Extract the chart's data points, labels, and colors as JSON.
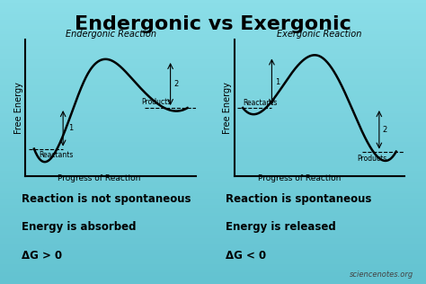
{
  "title": "Endergonic vs Exergonic",
  "title_fontsize": 16,
  "background_color_top": "#7fd8d8",
  "background_color": "#a8e8e8",
  "left_plot_title": "Endergonic Reaction",
  "right_plot_title": "Exergonic Reaction",
  "xlabel": "Progress of Reaction",
  "ylabel": "Free Energy",
  "left_text1": "Reaction is not spontaneous",
  "left_text2": "Energy is absorbed",
  "left_text3": "ΔG > 0",
  "right_text1": "Reaction is spontaneous",
  "right_text2": "Energy is released",
  "right_text3": "ΔG < 0",
  "watermark": "sciencenotes.org",
  "curve_color": "black",
  "curve_lw": 1.8,
  "axis_color": "black",
  "text_color": "black",
  "bold_text_color": "black"
}
